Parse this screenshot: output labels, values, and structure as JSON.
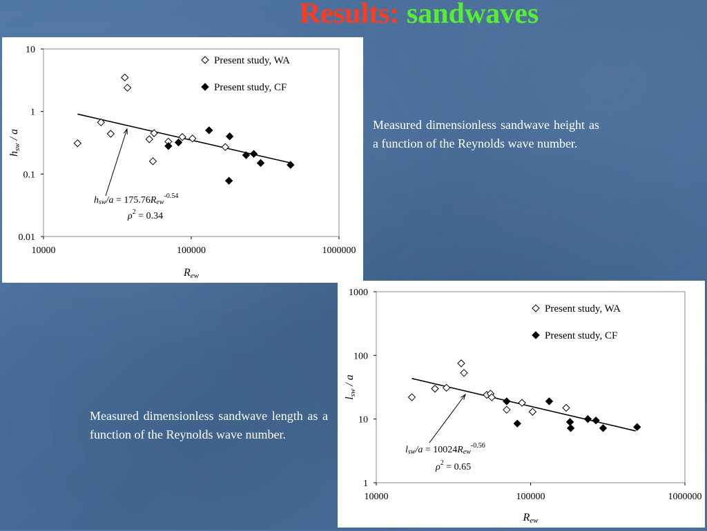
{
  "slide": {
    "title_part1": "Results:",
    "title_part2": "sandwaves",
    "caption1": "Measured dimensionless sandwave height as a function of the Reynolds wave number.",
    "caption2": "Measured dimensionless sandwave length as a function of the Reynolds wave number.",
    "colors": {
      "title_red": "#ff3b1f",
      "title_green": "#55ee33",
      "background": "#4a6f9a"
    }
  },
  "chart_data": [
    {
      "type": "scatter",
      "xscale": "log",
      "yscale": "log",
      "xlim": [
        10000,
        1000000
      ],
      "ylim": [
        0.01,
        10
      ],
      "xticks": [
        "10000",
        "100000",
        "1000000"
      ],
      "yticks": [
        "0.01",
        "0.1",
        "1",
        "10"
      ],
      "xlabel": {
        "main": "R",
        "sub": "ew"
      },
      "ylabel": {
        "main": "h",
        "sub": "sw",
        "rest": " /  a"
      },
      "legend": [
        "Present study, WA",
        "Present study, CF"
      ],
      "series": [
        {
          "name": "Present study, WA",
          "marker": "open-diamond",
          "x": [
            17000,
            24500,
            28500,
            35500,
            37000,
            52000,
            55000,
            56000,
            70000,
            87000,
            102000,
            170000
          ],
          "y": [
            0.31,
            0.67,
            0.44,
            3.5,
            2.4,
            0.36,
            0.16,
            0.45,
            0.33,
            0.39,
            0.37,
            0.27
          ]
        },
        {
          "name": "Present study, CF",
          "marker": "filled-diamond",
          "x": [
            70000,
            82000,
            132000,
            180000,
            182000,
            235000,
            265000,
            295000,
            470000
          ],
          "y": [
            0.28,
            0.32,
            0.5,
            0.078,
            0.4,
            0.2,
            0.21,
            0.15,
            0.14
          ]
        }
      ],
      "fit": {
        "x": [
          17000,
          480000
        ],
        "y": [
          0.909,
          0.149
        ]
      },
      "annotation": {
        "eq_lhs_main": "h",
        "eq_lhs_sub": "sw",
        "eq_lhs_rest": "/a",
        "eq_rhs": " = 175.76",
        "eq_R": "R",
        "eq_R_sub": "ew",
        "eq_exp": "-0.54",
        "rho": "ρ",
        "rho_exp": "2",
        "rho_val": " = 0.34"
      }
    },
    {
      "type": "scatter",
      "xscale": "log",
      "yscale": "log",
      "xlim": [
        10000,
        1000000
      ],
      "ylim": [
        1,
        1000
      ],
      "xticks": [
        "10000",
        "100000",
        "1000000"
      ],
      "yticks": [
        "1",
        "10",
        "100",
        "1000"
      ],
      "xlabel": {
        "main": "R",
        "sub": "ew"
      },
      "ylabel": {
        "main": "l",
        "sub": "sw",
        "rest": " /  a"
      },
      "legend": [
        "Present study, WA",
        "Present study, CF"
      ],
      "series": [
        {
          "name": "Present study, WA",
          "marker": "open-diamond",
          "x": [
            17000,
            24000,
            28500,
            35500,
            37000,
            52000,
            55000,
            56000,
            70000,
            88000,
            103000,
            170000
          ],
          "y": [
            22,
            30,
            31,
            75,
            53,
            24,
            25,
            22,
            14,
            18,
            13,
            15
          ]
        },
        {
          "name": "Present study, CF",
          "marker": "filled-diamond",
          "x": [
            70000,
            82000,
            132000,
            180000,
            182000,
            235000,
            265000,
            295000,
            490000
          ],
          "y": [
            19,
            8.5,
            19,
            9,
            7.2,
            10,
            9.5,
            7.2,
            7.5
          ]
        }
      ],
      "fit": {
        "x": [
          17000,
          480000
        ],
        "y": [
          43.4,
          6.5
        ]
      },
      "annotation": {
        "eq_lhs_main": "l",
        "eq_lhs_sub": "sw",
        "eq_lhs_rest": "/a",
        "eq_rhs": " = 10024",
        "eq_R": "R",
        "eq_R_sub": "ew",
        "eq_exp": "-0.56",
        "rho": "ρ",
        "rho_exp": "2",
        "rho_val": " = 0.65"
      }
    }
  ]
}
